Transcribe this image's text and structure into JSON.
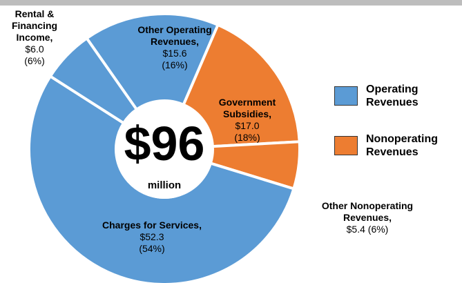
{
  "chart_data": {
    "type": "donut",
    "categories": [
      "Other Operating Revenues,",
      "Government Subsidies,",
      "Other Nonoperating Revenues,",
      "Charges for Services,",
      "Rental & Financing Income,"
    ],
    "values": [
      15.6,
      17.0,
      5.4,
      52.3,
      6.0
    ],
    "value_labels": [
      "$15.6",
      "$17.0",
      "$5.4",
      "$52.3",
      "$6.0"
    ],
    "percents": [
      16,
      18,
      6,
      54,
      6
    ],
    "percent_labels": [
      "(16%)",
      "(18%)",
      "(6%)",
      "(54%)",
      "(6%)"
    ],
    "groups": [
      0,
      1,
      1,
      0,
      0
    ],
    "legend": [
      {
        "name": "Operating Revenues",
        "color": "#5b9bd5"
      },
      {
        "name": "Nonoperating Revenues",
        "color": "#ed7d31"
      }
    ],
    "center_total": {
      "value": 96,
      "label": "$96"
    },
    "center_unit": "million"
  }
}
